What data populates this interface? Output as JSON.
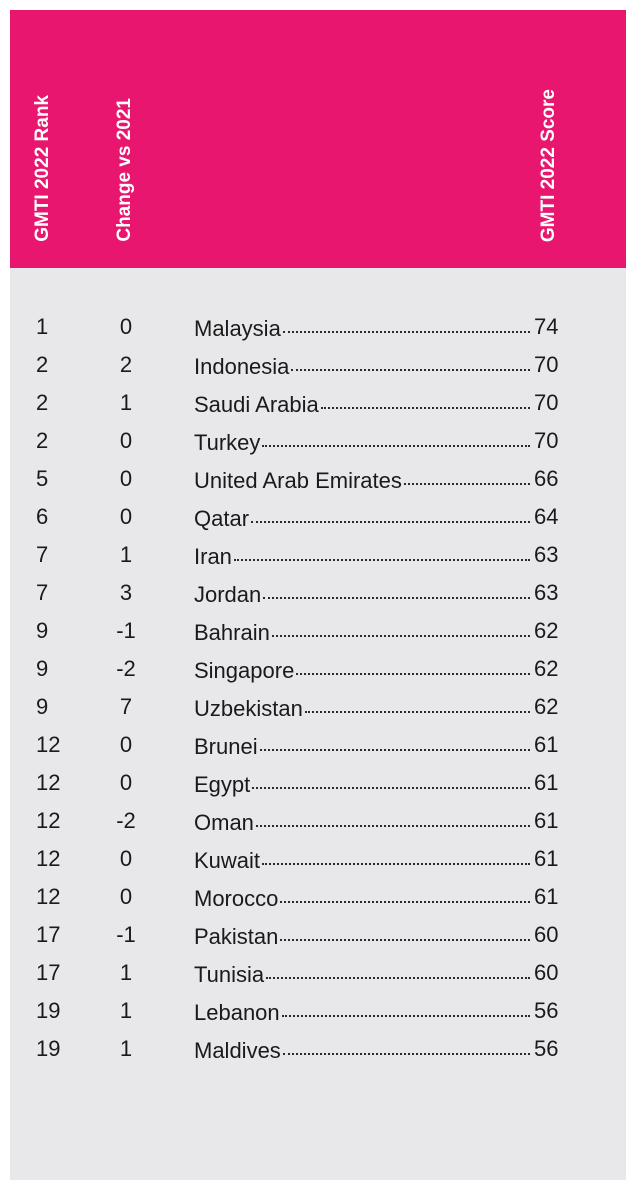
{
  "chart_data": {
    "type": "table",
    "columns": [
      "GMTI 2022 Rank",
      "Change vs 2021",
      "GMTI 2022 Score"
    ],
    "rows": [
      {
        "rank": "1",
        "change": "0",
        "country": "Malaysia",
        "score": "74"
      },
      {
        "rank": "2",
        "change": "2",
        "country": "Indonesia",
        "score": "70"
      },
      {
        "rank": "2",
        "change": "1",
        "country": "Saudi Arabia",
        "score": "70"
      },
      {
        "rank": "2",
        "change": "0",
        "country": "Turkey",
        "score": "70"
      },
      {
        "rank": "5",
        "change": "0",
        "country": "United Arab Emirates",
        "score": "66"
      },
      {
        "rank": "6",
        "change": "0",
        "country": "Qatar",
        "score": "64"
      },
      {
        "rank": "7",
        "change": "1",
        "country": "Iran",
        "score": "63"
      },
      {
        "rank": "7",
        "change": "3",
        "country": "Jordan",
        "score": "63"
      },
      {
        "rank": "9",
        "change": "-1",
        "country": "Bahrain",
        "score": "62"
      },
      {
        "rank": "9",
        "change": "-2",
        "country": "Singapore",
        "score": "62"
      },
      {
        "rank": "9",
        "change": "7",
        "country": "Uzbekistan",
        "score": "62"
      },
      {
        "rank": "12",
        "change": "0",
        "country": "Brunei",
        "score": "61"
      },
      {
        "rank": "12",
        "change": "0",
        "country": "Egypt",
        "score": "61"
      },
      {
        "rank": "12",
        "change": "-2",
        "country": "Oman",
        "score": "61"
      },
      {
        "rank": "12",
        "change": "0",
        "country": "Kuwait",
        "score": "61"
      },
      {
        "rank": "12",
        "change": "0",
        "country": "Morocco",
        "score": "61"
      },
      {
        "rank": "17",
        "change": "-1",
        "country": "Pakistan",
        "score": "60"
      },
      {
        "rank": "17",
        "change": "1",
        "country": "Tunisia",
        "score": "60"
      },
      {
        "rank": "19",
        "change": "1",
        "country": "Lebanon",
        "score": "56"
      },
      {
        "rank": "19",
        "change": "1",
        "country": "Maldives",
        "score": "56"
      }
    ]
  },
  "colors": {
    "header_bg": "#e8166f",
    "body_bg": "#e8e7e9",
    "header_text": "#ffffff",
    "body_text": "#1a1a1a"
  }
}
